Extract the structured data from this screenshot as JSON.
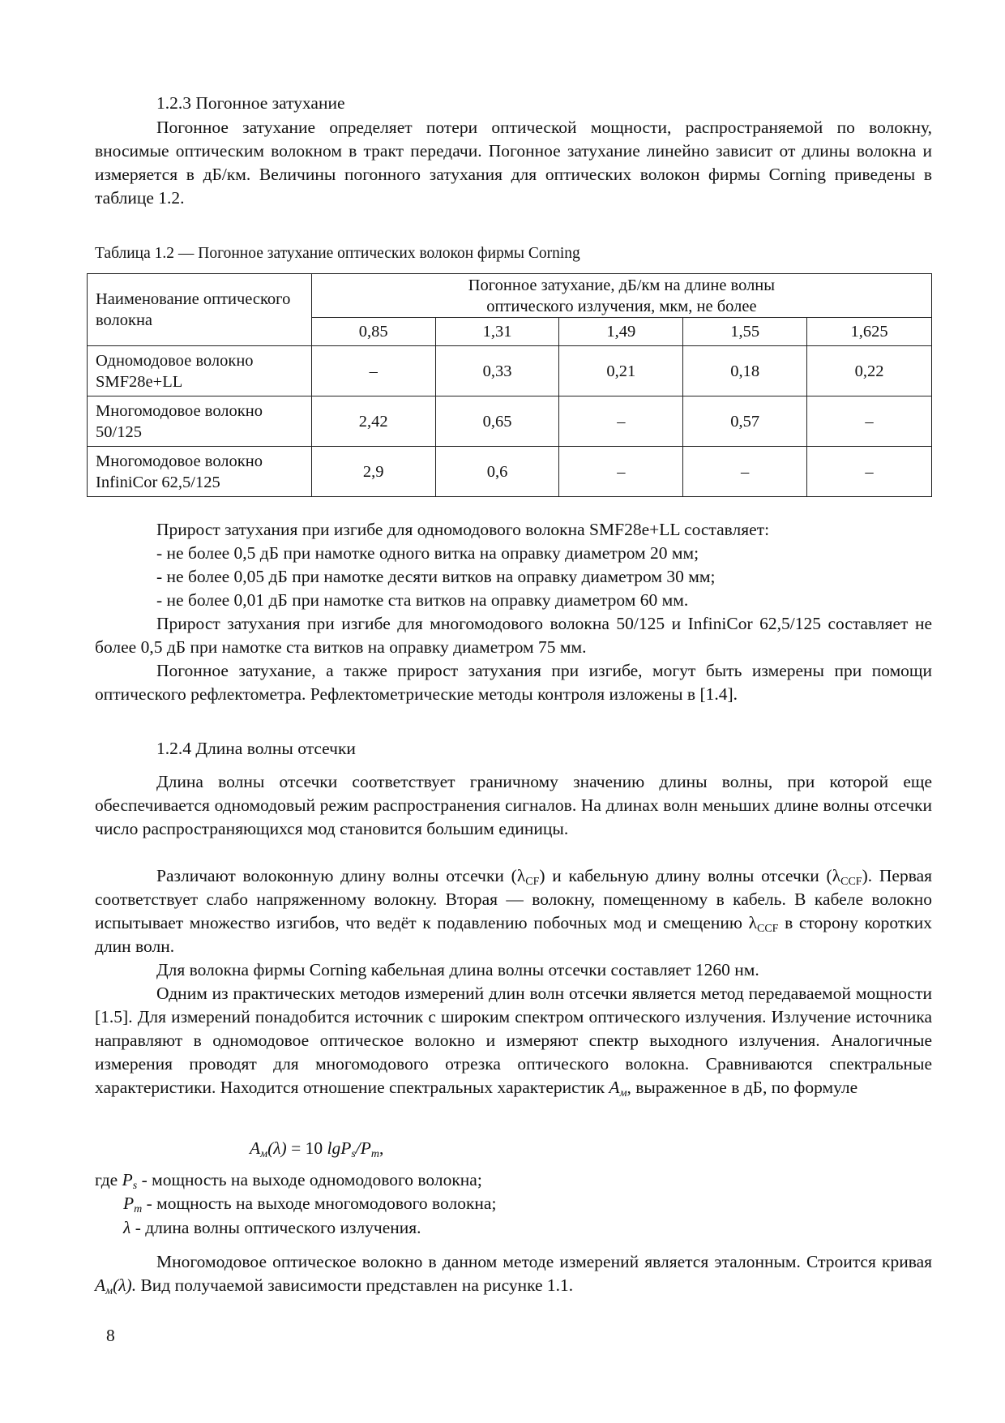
{
  "section_1_2_3": {
    "heading": "1.2.3 Погонное затухание",
    "para1": "Погонное затухание определяет потери оптической мощности, распространяемой по волокну, вносимые оптическим волокном в тракт передачи. Погонное затухание линейно зависит от длины волокна и измеряется в дБ/км. Величины погонного затухания для оптических волокон фирмы Corning приведены в таблице 1.2."
  },
  "table": {
    "caption": "Таблица 1.2 — Погонное затухание оптических волокон фирмы Corning",
    "header_name": "Наименование оптического волокна",
    "header_group": "Погонное затухание, дБ/км на длине волны оптического излучения, мкм, не более",
    "wavelengths": [
      "0,85",
      "1,31",
      "1,49",
      "1,55",
      "1,625"
    ],
    "rows": [
      {
        "name": "Одномодовое волокно SMF28e+LL",
        "values": [
          "–",
          "0,33",
          "0,21",
          "0,18",
          "0,22"
        ]
      },
      {
        "name": "Многомодовое волокно 50/125",
        "values": [
          "2,42",
          "0,65",
          "–",
          "0,57",
          "–"
        ]
      },
      {
        "name": "Многомодовое волокно InfiniCor 62,5/125",
        "values": [
          "2,9",
          "0,6",
          "–",
          "–",
          "–"
        ]
      }
    ]
  },
  "bend": {
    "intro": "Прирост затухания при изгибе для одномодового волокна SMF28e+LL составляет:",
    "items": [
      "- не более 0,5 дБ при намотке одного витка на оправку диаметром 20 мм;",
      "- не более 0,05 дБ при намотке десяти витков на оправку диаметром 30 мм;",
      "- не более 0,01 дБ при намотке ста витков на оправку диаметром 60 мм."
    ],
    "multimode": "Прирост затухания при изгибе для многомодового волокна 50/125 и InfiniCor 62,5/125 составляет не более 0,5 дБ при намотке ста витков на оправку диаметром 75 мм.",
    "otdr": "Погонное затухание, а также прирост затухания при изгибе, могут быть измерены при помощи оптического рефлектометра. Рефлектометрические методы контроля изложены в [1.4]."
  },
  "section_1_2_4": {
    "heading": "1.2.4 Длина волны отсечки",
    "para1": "Длина волны отсечки соответствует граничному значению длины волны, при которой еще обеспечивается одномодовый режим распространения сигналов. На длинах волн меньших длине волны отсечки число распространяющихся мод становится большим единицы.",
    "para2": {
      "a": "Различают волоконную длину волны отсечки (λ",
      "sub1": "CF",
      "b": ") и кабельную длину волны отсечки (λ",
      "sub2": "CCF",
      "c": "). Первая соответствует слабо напряженному волокну. Вторая — волокну, помещенному в кабель. В кабеле волокно испытывает множество изгибов, что ведёт к подавлению побочных мод и смещению λ",
      "sub3": "CCF",
      "d": " в сторону коротких длин волн."
    },
    "para3": "Для волокна фирмы Corning кабельная длина волны отсечки составляет 1260 нм.",
    "para4": {
      "a": "Одним из практических методов измерений длин волн отсечки является метод передаваемой мощности [1.5]. Для измерений понадобится источник с широким спектром оптического излучения. Излучение источника направляют в одномодовое оптическое волокно и измеряют спектр выходного излучения. Аналогичные измерения проводят для многомодового отрезка оптического волокна. Сравниваются спектральные характеристики. Находится отношение спектральных характеристик ",
      "var": "A",
      "var_sub": "м",
      "b": ", выраженное в дБ, по формуле"
    },
    "formula": {
      "lhs": "A",
      "lhs_sub": "м",
      "arg": "(λ)",
      "eq": " = 10 ",
      "lg": "lgP",
      "s": "s",
      "slash": "/P",
      "m": "m",
      "end": ","
    },
    "where": [
      {
        "prefix": "где ",
        "sym": "P",
        "sub": "s",
        "text": " - мощность на выходе одномодового волокна;"
      },
      {
        "prefix": "",
        "sym": "P",
        "sub": "m",
        "text": " - мощность на выходе многомодового волокна;"
      },
      {
        "prefix": "",
        "sym": "λ",
        "sub": "",
        "text": " - длина волны оптического излучения."
      }
    ],
    "para5": {
      "a": "Многомодовое оптическое волокно в данном методе измерений является эталонным. Строится кривая ",
      "var": "A",
      "var_sub": "м",
      "arg": "(λ).",
      "b": " Вид получаемой зависимости представлен на рисунке 1.1."
    }
  },
  "page_number": "8"
}
